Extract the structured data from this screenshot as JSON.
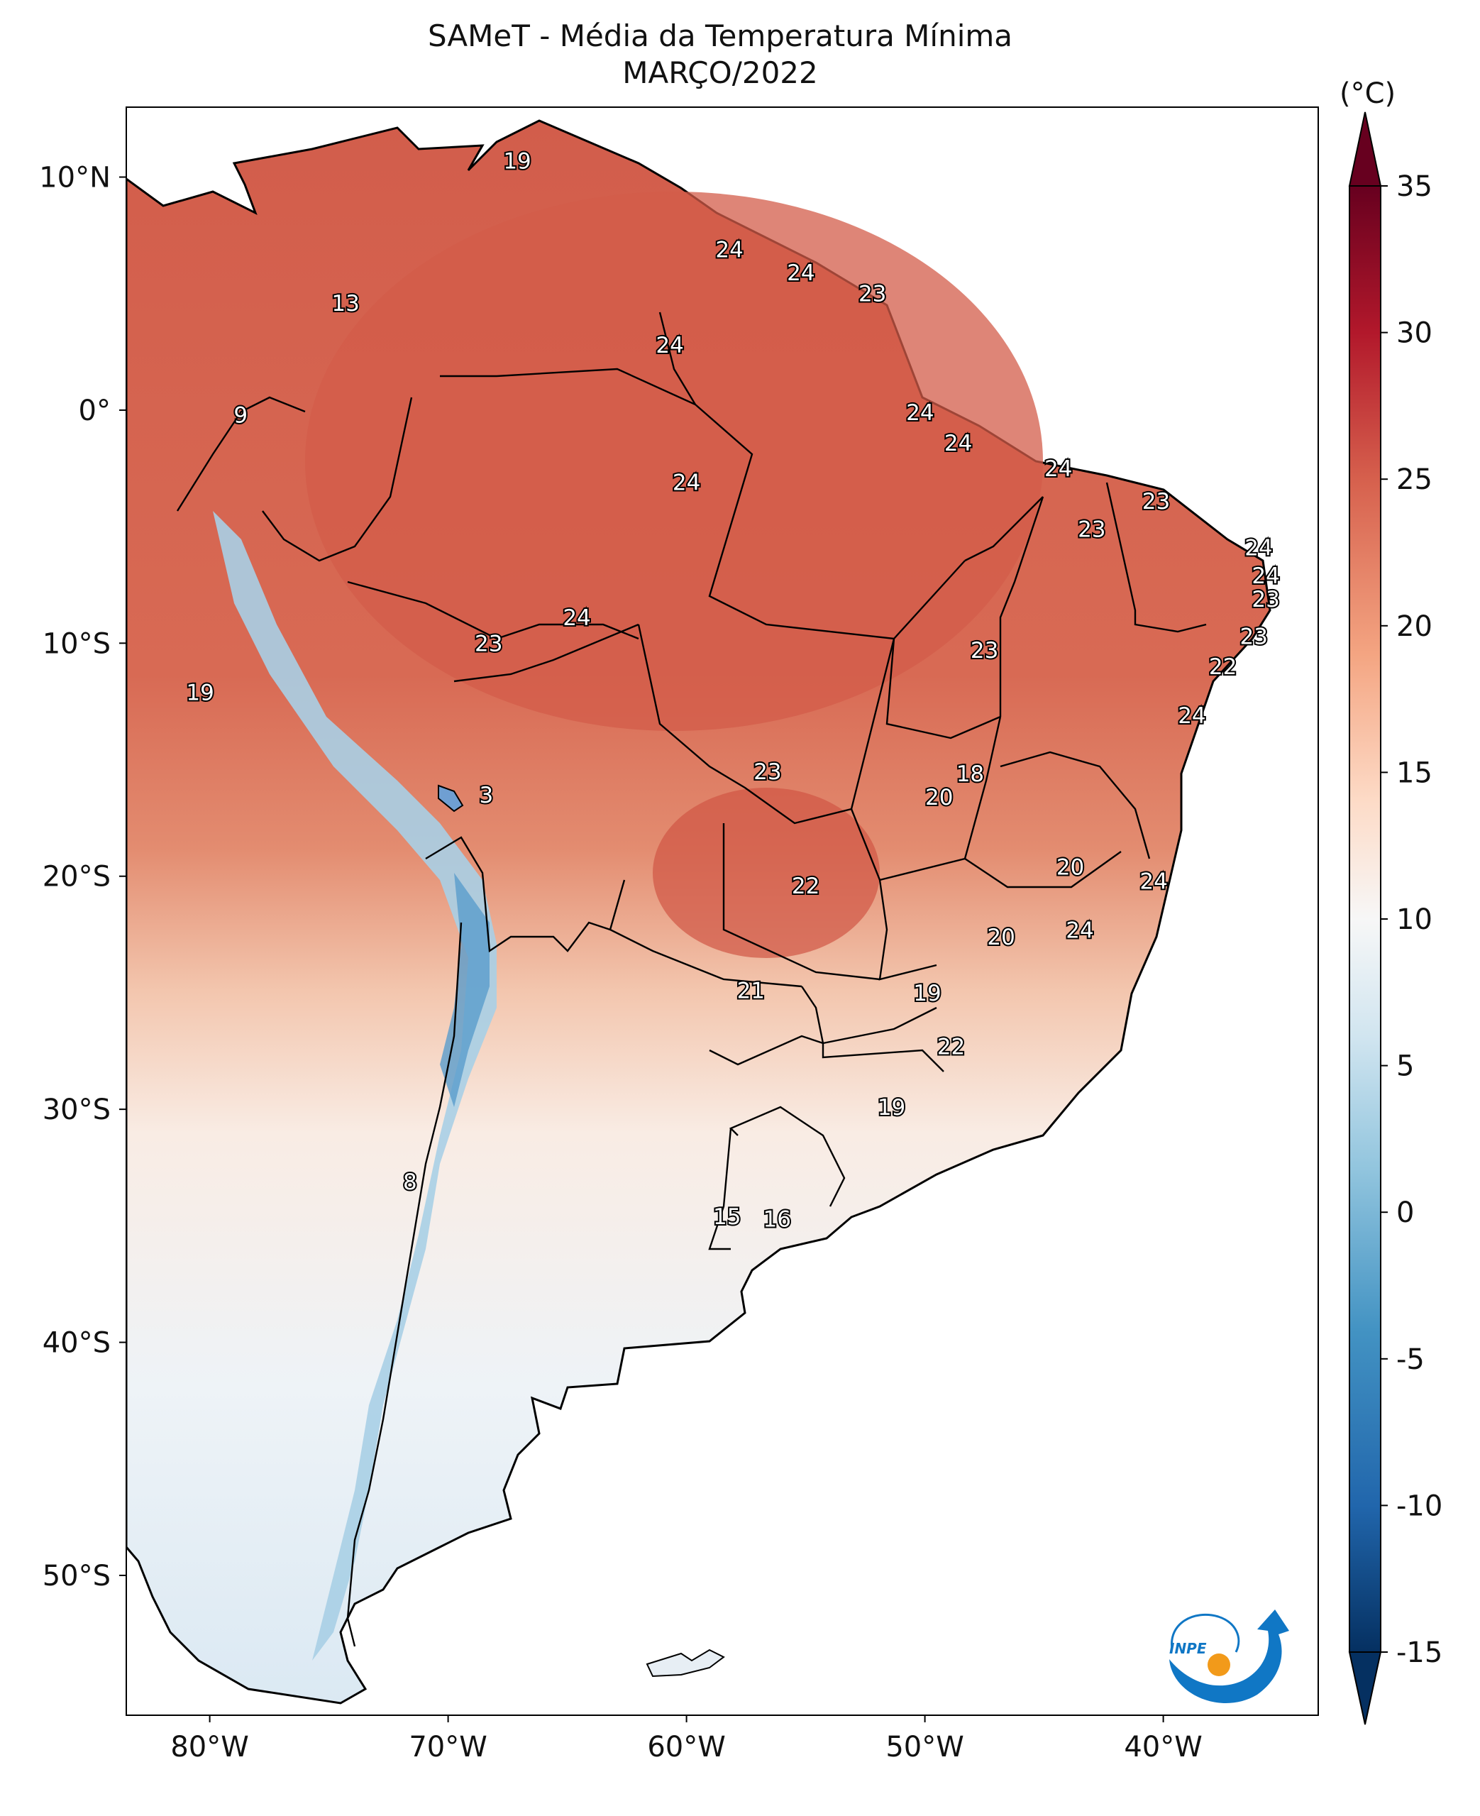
{
  "title": {
    "line1": "SAMeT - Média da Temperatura Mínima",
    "line2": "MARÇO/2022"
  },
  "colorbar": {
    "unit_label": "(°C)",
    "ticks": [
      "35",
      "30",
      "25",
      "20",
      "15",
      "10",
      "5",
      "0",
      "-5",
      "-10",
      "-15"
    ],
    "min": -15,
    "max": 35,
    "colors": [
      "#053061",
      "#2166ac",
      "#4393c3",
      "#92c5de",
      "#d1e5f0",
      "#f7f7f7",
      "#fddbc7",
      "#f4a582",
      "#d6604d",
      "#b2182b",
      "#67001f"
    ]
  },
  "axes": {
    "lon_labels": [
      "80°W",
      "70°W",
      "60°W",
      "50°W",
      "40°W"
    ],
    "lat_labels": [
      "10°N",
      "0°",
      "10°S",
      "20°S",
      "30°S",
      "40°S",
      "50°S"
    ],
    "lon_range": [
      -83.5,
      -33.5
    ],
    "lat_range": [
      -56,
      13
    ]
  },
  "map_labels": [
    {
      "value": "19",
      "lon": -67.1,
      "lat": 10.7
    },
    {
      "value": "13",
      "lon": -74.3,
      "lat": 4.6
    },
    {
      "value": "24",
      "lon": -58.2,
      "lat": 6.9
    },
    {
      "value": "24",
      "lon": -55.2,
      "lat": 5.9
    },
    {
      "value": "23",
      "lon": -52.2,
      "lat": 5.0
    },
    {
      "value": "24",
      "lon": -60.7,
      "lat": 2.8
    },
    {
      "value": "9",
      "lon": -78.7,
      "lat": -0.2
    },
    {
      "value": "24",
      "lon": -50.2,
      "lat": -0.1
    },
    {
      "value": "24",
      "lon": -48.6,
      "lat": -1.4
    },
    {
      "value": "24",
      "lon": -60.0,
      "lat": -3.1
    },
    {
      "value": "24",
      "lon": -44.4,
      "lat": -2.5
    },
    {
      "value": "23",
      "lon": -40.3,
      "lat": -3.9
    },
    {
      "value": "23",
      "lon": -43.0,
      "lat": -5.1
    },
    {
      "value": "24",
      "lon": -36.0,
      "lat": -5.9
    },
    {
      "value": "24",
      "lon": -35.7,
      "lat": -7.1
    },
    {
      "value": "23",
      "lon": -35.7,
      "lat": -8.1
    },
    {
      "value": "23",
      "lon": -36.2,
      "lat": -9.7
    },
    {
      "value": "22",
      "lon": -37.5,
      "lat": -11.0
    },
    {
      "value": "24",
      "lon": -64.6,
      "lat": -8.9
    },
    {
      "value": "23",
      "lon": -68.3,
      "lat": -10.0
    },
    {
      "value": "23",
      "lon": -47.5,
      "lat": -10.3
    },
    {
      "value": "19",
      "lon": -80.4,
      "lat": -12.1
    },
    {
      "value": "24",
      "lon": -38.8,
      "lat": -13.1
    },
    {
      "value": "23",
      "lon": -56.6,
      "lat": -15.5
    },
    {
      "value": "18",
      "lon": -48.1,
      "lat": -15.6
    },
    {
      "value": "20",
      "lon": -49.4,
      "lat": -16.6
    },
    {
      "value": "3",
      "lon": -68.4,
      "lat": -16.5
    },
    {
      "value": "20",
      "lon": -43.9,
      "lat": -19.6
    },
    {
      "value": "24",
      "lon": -40.4,
      "lat": -20.2
    },
    {
      "value": "22",
      "lon": -55.0,
      "lat": -20.4
    },
    {
      "value": "20",
      "lon": -46.8,
      "lat": -22.6
    },
    {
      "value": "24",
      "lon": -43.5,
      "lat": -22.3
    },
    {
      "value": "21",
      "lon": -57.3,
      "lat": -24.9
    },
    {
      "value": "19",
      "lon": -49.9,
      "lat": -25.0
    },
    {
      "value": "22",
      "lon": -48.9,
      "lat": -27.3
    },
    {
      "value": "19",
      "lon": -51.4,
      "lat": -29.9
    },
    {
      "value": "8",
      "lon": -71.6,
      "lat": -33.1
    },
    {
      "value": "15",
      "lon": -58.3,
      "lat": -34.6
    },
    {
      "value": "16",
      "lon": -56.2,
      "lat": -34.7
    }
  ],
  "logo": {
    "text": "INPE",
    "colors": {
      "blue": "#1077c5",
      "orange": "#f29a1a"
    }
  },
  "temperature_field": {
    "description_colors": {
      "hot": "#d6604d",
      "warm": "#e6866b",
      "mild": "#f7d3c0",
      "cold": "#9ecae1",
      "very_cold": "#4d8fc4"
    }
  }
}
